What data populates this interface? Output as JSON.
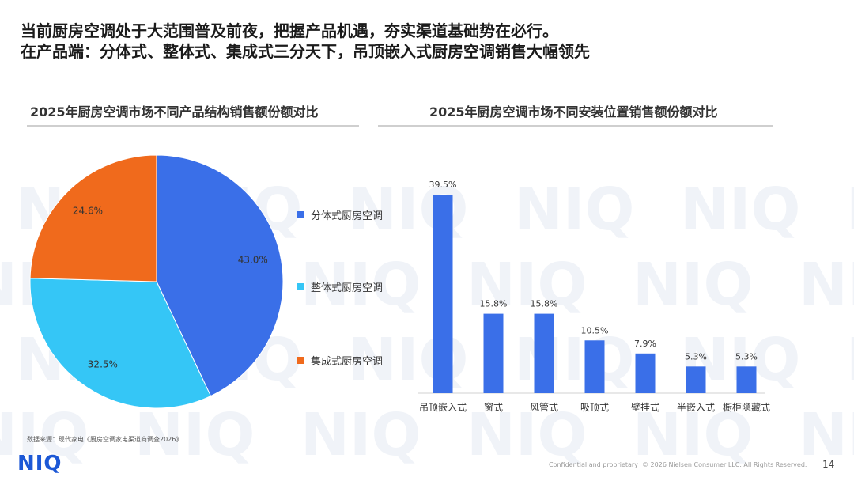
{
  "headline": {
    "line1": "当前厨房空调处于大范围普及前夜，把握产品机遇，夯实渠道基础势在必行。",
    "line2": "在产品端：分体式、整体式、集成式三分天下，吊顶嵌入式厨房空调销售大幅领先"
  },
  "watermark": "NIQ",
  "chart_data": [
    {
      "type": "pie",
      "title": "2025年厨房空调市场不同产品结构销售额份额对比",
      "categories": [
        "分体式厨房空调",
        "整体式厨房空调",
        "集成式厨房空调"
      ],
      "values": [
        43.0,
        32.5,
        24.6
      ],
      "labels": [
        "43.0%",
        "32.5%",
        "24.6%"
      ],
      "colors": [
        "#3a6fe8",
        "#35c6f6",
        "#f06a1c"
      ],
      "legend_position": "right"
    },
    {
      "type": "bar",
      "title": "2025年厨房空调市场不同安装位置销售额份额对比",
      "categories": [
        "吊顶嵌入式",
        "窗式",
        "风管式",
        "吸顶式",
        "壁挂式",
        "半嵌入式",
        "橱柜隐藏式"
      ],
      "values": [
        39.5,
        15.8,
        15.8,
        10.5,
        7.9,
        5.3,
        5.3
      ],
      "labels": [
        "39.5%",
        "15.8%",
        "15.8%",
        "10.5%",
        "7.9%",
        "5.3%",
        "5.3%"
      ],
      "color": "#3a6fe8",
      "ylim": [
        0,
        39.5
      ]
    }
  ],
  "footer": {
    "source": "数据来源：现代家电《厨房空调家电渠道商调查2026》",
    "logo": "NIQ",
    "confidential": "Confidential and proprietary",
    "copyright": "© 2026 Nielsen Consumer LLC. All Rights Reserved.",
    "page": "14"
  }
}
